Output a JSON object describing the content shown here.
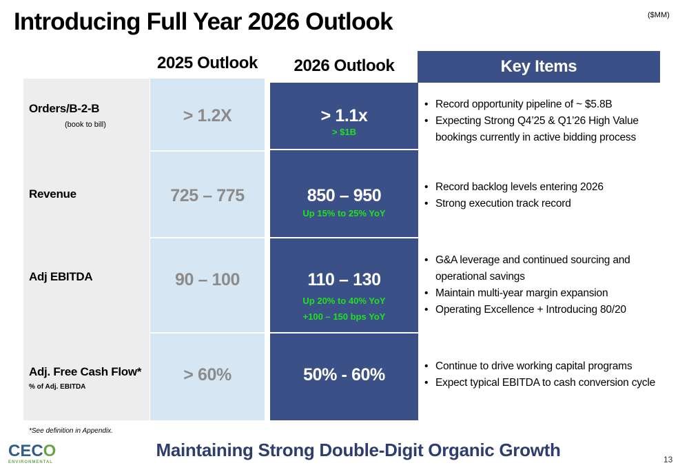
{
  "title": "Introducing Full Year 2026 Outlook",
  "units": "($MM)",
  "columns": {
    "outlook_2025": "2025 Outlook",
    "outlook_2026": "2026 Outlook",
    "key_items": "Key Items"
  },
  "rows": [
    {
      "label": "Orders/B-2-B",
      "sub": "(book to bill)",
      "v2025": "> 1.2X",
      "v2026": "> 1.1x",
      "v2026_notes": [
        "> $1B"
      ],
      "items": [
        "Record opportunity pipeline of ~ $5.8B",
        "Expecting Strong Q4’25 & Q1’26 High Value bookings currently in active bidding process"
      ]
    },
    {
      "label": "Revenue",
      "v2025": "725 – 775",
      "v2026": "850 – 950",
      "v2026_notes": [
        "Up 15% to 25% YoY"
      ],
      "items": [
        "Record backlog levels entering 2026",
        "Strong execution track record"
      ]
    },
    {
      "label": "Adj EBITDA",
      "v2025": "90 – 100",
      "v2026": "110 – 130",
      "v2026_notes": [
        "Up 20% to 40% YoY",
        "+100 – 150 bps YoY"
      ],
      "items": [
        "G&A leverage and continued sourcing and operational savings",
        "Maintain multi-year margin expansion",
        "Operating Excellence + Introducing 80/20"
      ]
    },
    {
      "label": "Adj. Free Cash Flow*",
      "sub": "% of Adj. EBITDA",
      "v2025": "> 60%",
      "v2026": "50% - 60%",
      "items": [
        "Continue to drive working capital programs",
        "Expect typical EBITDA to cash conversion cycle"
      ]
    }
  ],
  "footnote": "*See definition in Appendix.",
  "tagline": "Maintaining Strong Double-Digit Organic Growth",
  "logo": {
    "main_a": "CEC",
    "main_b": "O",
    "sub": "ENVIRONMENTAL"
  },
  "page_number": "13",
  "colors": {
    "navy": "#3b5087",
    "light_blue": "#d7e6f3",
    "label_gray": "#ededed",
    "green": "#22e01f",
    "tagline": "#2d3e6e"
  }
}
